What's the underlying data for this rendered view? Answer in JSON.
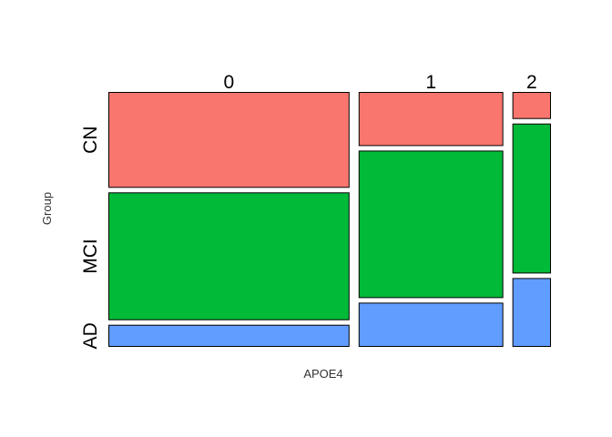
{
  "chart_data": {
    "type": "mosaic",
    "xlabel": "APOE4",
    "ylabel": "Group",
    "column_categories": [
      "0",
      "1",
      "2"
    ],
    "row_categories": [
      "CN",
      "MCI",
      "AD"
    ],
    "column_proportions": [
      0.5,
      0.3,
      0.08
    ],
    "cell_proportions": [
      {
        "APOE4": "0",
        "CN": 0.39,
        "MCI": 0.52,
        "AD": 0.09
      },
      {
        "APOE4": "1",
        "CN": 0.22,
        "MCI": 0.6,
        "AD": 0.18
      },
      {
        "APOE4": "2",
        "CN": 0.11,
        "MCI": 0.61,
        "AD": 0.28
      }
    ],
    "colors": {
      "CN": "#F8766D",
      "MCI": "#00BA38",
      "AD": "#619CFF"
    },
    "legend": false,
    "grid": false
  }
}
